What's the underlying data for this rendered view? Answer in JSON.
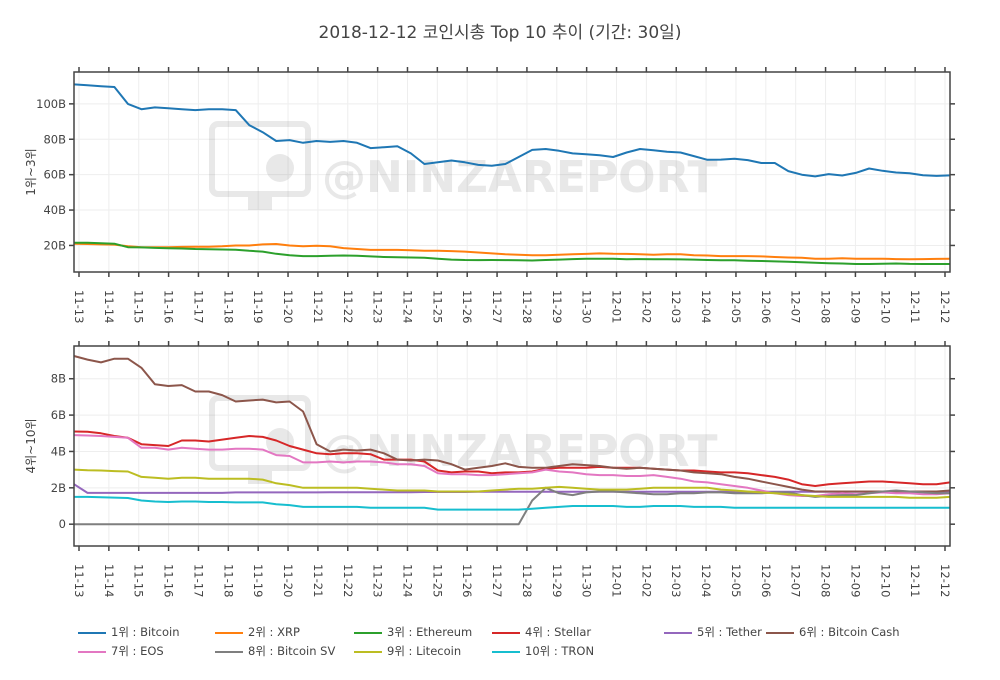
{
  "title": "2018-12-12 코인시총 Top 10 추이 (기간: 30일)",
  "watermark": "@NINZAREPORT",
  "chart_data": [
    {
      "type": "line",
      "ylabel": "1위~3위",
      "ylim": [
        5,
        118
      ],
      "yticks": [
        20,
        40,
        60,
        80,
        100
      ],
      "ytick_labels": [
        "20B",
        "40B",
        "60B",
        "80B",
        "100B"
      ],
      "x_tick_labels": [
        "11-13",
        "11-14",
        "11-15",
        "11-16",
        "11-17",
        "11-18",
        "11-19",
        "11-20",
        "11-21",
        "11-22",
        "11-23",
        "11-24",
        "11-25",
        "11-26",
        "11-27",
        "11-28",
        "11-29",
        "11-30",
        "12-01",
        "12-02",
        "12-03",
        "12-04",
        "12-05",
        "12-06",
        "12-07",
        "12-08",
        "12-09",
        "12-10",
        "12-11",
        "12-12"
      ],
      "grid": true,
      "series": [
        {
          "name": "1위 : Bitcoin",
          "color": "#1f77b4",
          "values": [
            111,
            110.5,
            110,
            109.5,
            100,
            97,
            98,
            97.5,
            97,
            96.5,
            97,
            97,
            96.5,
            88,
            84,
            79,
            79.5,
            78,
            79,
            78.5,
            79,
            78,
            75,
            75.5,
            76,
            72,
            66,
            67,
            68,
            67,
            65.5,
            65,
            66,
            70,
            74,
            74.5,
            73.5,
            72,
            71.5,
            71,
            70,
            72.5,
            74.5,
            73.8,
            72.9,
            72.5,
            70.5,
            68.4,
            68.5,
            69,
            68.2,
            66.6,
            66.6,
            62,
            60,
            59,
            60.3,
            59.5,
            61,
            63.5,
            62.2,
            61.2,
            60.8,
            59.7,
            59.3,
            59.6
          ]
        },
        {
          "name": "2위 : XRP",
          "color": "#ff7f0e",
          "values": [
            21,
            20.8,
            20.6,
            20.5,
            19.5,
            19,
            19,
            19,
            19.2,
            19.3,
            19.3,
            19.5,
            20,
            20,
            20.6,
            20.8,
            20,
            19.5,
            19.8,
            19.5,
            18.5,
            18,
            17.5,
            17.5,
            17.5,
            17.3,
            17,
            17,
            16.8,
            16.5,
            16,
            15.5,
            15,
            14.8,
            14.5,
            14.5,
            14.8,
            15,
            15.2,
            15.5,
            15.3,
            15.2,
            15,
            14.8,
            15,
            15,
            14.5,
            14.3,
            14,
            14,
            14,
            13.8,
            13.5,
            13.2,
            13,
            12.5,
            12.5,
            12.8,
            12.5,
            12.5,
            12.5,
            12.3,
            12.2,
            12.3,
            12.4,
            12.5
          ]
        },
        {
          "name": "3위 : Ethereum",
          "color": "#2ca02c",
          "values": [
            21.5,
            21.5,
            21.3,
            21,
            19,
            18.9,
            18.6,
            18.4,
            18.3,
            18,
            17.9,
            17.7,
            17.6,
            17,
            16.5,
            15.3,
            14.5,
            14,
            14,
            14.2,
            14.3,
            14.2,
            13.8,
            13.5,
            13.3,
            13.2,
            13,
            12.5,
            12,
            11.8,
            11.7,
            11.8,
            11.7,
            11.6,
            11.5,
            11.8,
            12,
            12.3,
            12.5,
            12.5,
            12.5,
            12.2,
            12.3,
            12.2,
            12.2,
            12.1,
            12,
            11.8,
            11.6,
            11.6,
            11.4,
            11.2,
            11,
            10.8,
            10.5,
            10.2,
            10,
            9.8,
            9.5,
            9.5,
            9.7,
            9.8,
            9.6,
            9.5,
            9.5,
            9.5
          ]
        }
      ]
    },
    {
      "type": "line",
      "ylabel": "4위~10위",
      "ylim": [
        -1.2,
        9.8
      ],
      "yticks": [
        0,
        2,
        4,
        6,
        8
      ],
      "ytick_labels": [
        "0",
        "2B",
        "4B",
        "6B",
        "8B"
      ],
      "x_tick_labels": [
        "11-13",
        "11-14",
        "11-15",
        "11-16",
        "11-17",
        "11-18",
        "11-19",
        "11-20",
        "11-21",
        "11-22",
        "11-23",
        "11-24",
        "11-25",
        "11-26",
        "11-27",
        "11-28",
        "11-29",
        "11-30",
        "12-01",
        "12-02",
        "12-03",
        "12-04",
        "12-05",
        "12-06",
        "12-07",
        "12-08",
        "12-09",
        "12-10",
        "12-11",
        "12-12"
      ],
      "grid": true,
      "series": [
        {
          "name": "4위 : Stellar",
          "color": "#d62728",
          "values": [
            5.1,
            5.08,
            5.0,
            4.85,
            4.75,
            4.4,
            4.35,
            4.3,
            4.6,
            4.6,
            4.55,
            4.65,
            4.75,
            4.85,
            4.8,
            4.6,
            4.3,
            4.1,
            3.9,
            3.85,
            3.9,
            3.9,
            3.85,
            3.55,
            3.55,
            3.55,
            3.45,
            2.95,
            2.85,
            2.9,
            2.9,
            2.8,
            2.85,
            2.85,
            2.9,
            3.05,
            3.1,
            3.1,
            3.1,
            3.15,
            3.1,
            3.1,
            3.1,
            3.05,
            3.0,
            2.95,
            2.95,
            2.9,
            2.85,
            2.85,
            2.8,
            2.7,
            2.6,
            2.45,
            2.2,
            2.1,
            2.2,
            2.25,
            2.3,
            2.35,
            2.35,
            2.3,
            2.25,
            2.2,
            2.2,
            2.3
          ]
        },
        {
          "name": "5위 : Tether",
          "color": "#9467bd",
          "values": [
            2.2,
            1.72,
            1.72,
            1.72,
            1.72,
            1.72,
            1.72,
            1.72,
            1.72,
            1.72,
            1.72,
            1.72,
            1.75,
            1.75,
            1.75,
            1.75,
            1.75,
            1.75,
            1.75,
            1.76,
            1.76,
            1.76,
            1.76,
            1.76,
            1.76,
            1.76,
            1.77,
            1.77,
            1.77,
            1.77,
            1.78,
            1.78,
            1.78,
            1.78,
            1.78,
            1.78,
            1.78,
            1.78,
            1.78,
            1.78,
            1.78,
            1.78,
            1.78,
            1.78,
            1.78,
            1.78,
            1.78,
            1.78,
            1.78,
            1.78,
            1.78,
            1.78,
            1.78,
            1.78,
            1.78,
            1.78,
            1.78,
            1.78,
            1.78,
            1.78,
            1.78,
            1.78,
            1.78,
            1.78,
            1.78,
            1.8
          ]
        },
        {
          "name": "6위 : Bitcoin Cash",
          "color": "#8c564b",
          "values": [
            9.25,
            9.05,
            8.9,
            9.1,
            9.1,
            8.6,
            7.7,
            7.6,
            7.65,
            7.3,
            7.3,
            7.1,
            6.75,
            6.8,
            6.85,
            6.7,
            6.75,
            6.2,
            4.4,
            4.0,
            4.1,
            4.05,
            4.1,
            3.9,
            3.55,
            3.5,
            3.55,
            3.5,
            3.3,
            3.0,
            3.1,
            3.2,
            3.35,
            3.15,
            3.1,
            3.1,
            3.2,
            3.3,
            3.25,
            3.2,
            3.1,
            3.05,
            3.1,
            3.05,
            3.0,
            2.95,
            2.85,
            2.8,
            2.75,
            2.6,
            2.5,
            2.35,
            2.2,
            2.05,
            1.9,
            1.8,
            1.8,
            1.8,
            1.8,
            1.8,
            1.8,
            1.8,
            1.8,
            1.8,
            1.8,
            1.85
          ]
        },
        {
          "name": "7위 : EOS",
          "color": "#e377c2",
          "values": [
            4.9,
            4.88,
            4.85,
            4.8,
            4.75,
            4.2,
            4.2,
            4.1,
            4.2,
            4.15,
            4.1,
            4.1,
            4.15,
            4.15,
            4.1,
            3.8,
            3.75,
            3.4,
            3.4,
            3.45,
            3.4,
            3.45,
            3.45,
            3.4,
            3.3,
            3.3,
            3.2,
            2.8,
            2.75,
            2.75,
            2.7,
            2.7,
            2.75,
            2.8,
            2.85,
            3.0,
            2.9,
            2.85,
            2.75,
            2.7,
            2.7,
            2.65,
            2.65,
            2.7,
            2.6,
            2.5,
            2.35,
            2.3,
            2.2,
            2.1,
            2.0,
            1.85,
            1.7,
            1.6,
            1.55,
            1.55,
            1.65,
            1.7,
            1.65,
            1.7,
            1.75,
            1.7,
            1.7,
            1.65,
            1.65,
            1.7
          ]
        },
        {
          "name": "8위 : Bitcoin SV",
          "color": "#7f7f7f",
          "values": [
            0,
            0,
            0,
            0,
            0,
            0,
            0,
            0,
            0,
            0,
            0,
            0,
            0,
            0,
            0,
            0,
            0,
            0,
            0,
            0,
            0,
            0,
            0,
            0,
            0,
            0,
            0,
            0,
            0,
            0,
            0,
            0,
            0,
            0,
            1.3,
            2.0,
            1.7,
            1.6,
            1.75,
            1.8,
            1.8,
            1.75,
            1.7,
            1.65,
            1.65,
            1.7,
            1.7,
            1.75,
            1.75,
            1.7,
            1.7,
            1.7,
            1.75,
            1.75,
            1.6,
            1.5,
            1.55,
            1.6,
            1.6,
            1.7,
            1.8,
            1.85,
            1.8,
            1.75,
            1.7,
            1.7
          ]
        },
        {
          "name": "9위 : Litecoin",
          "color": "#bcbd22",
          "values": [
            3.0,
            2.97,
            2.95,
            2.92,
            2.9,
            2.6,
            2.55,
            2.5,
            2.55,
            2.55,
            2.5,
            2.5,
            2.5,
            2.5,
            2.45,
            2.25,
            2.15,
            2.0,
            2.0,
            2.0,
            2.0,
            2.0,
            1.95,
            1.9,
            1.85,
            1.85,
            1.85,
            1.8,
            1.8,
            1.8,
            1.8,
            1.85,
            1.9,
            1.95,
            1.95,
            2.0,
            2.05,
            2.0,
            1.95,
            1.9,
            1.9,
            1.9,
            1.95,
            2.0,
            2.0,
            2.0,
            2.0,
            2.0,
            1.9,
            1.85,
            1.8,
            1.75,
            1.7,
            1.65,
            1.6,
            1.55,
            1.5,
            1.5,
            1.5,
            1.5,
            1.5,
            1.5,
            1.45,
            1.45,
            1.45,
            1.5
          ]
        },
        {
          "name": "10위 : TRON",
          "color": "#17becf",
          "values": [
            1.5,
            1.5,
            1.48,
            1.46,
            1.44,
            1.3,
            1.25,
            1.22,
            1.25,
            1.25,
            1.22,
            1.22,
            1.2,
            1.2,
            1.2,
            1.1,
            1.05,
            0.95,
            0.95,
            0.95,
            0.95,
            0.95,
            0.9,
            0.9,
            0.9,
            0.9,
            0.9,
            0.8,
            0.8,
            0.8,
            0.8,
            0.8,
            0.8,
            0.8,
            0.85,
            0.9,
            0.95,
            1.0,
            1.0,
            1.0,
            1.0,
            0.95,
            0.95,
            1.0,
            1.0,
            1.0,
            0.95,
            0.95,
            0.95,
            0.9,
            0.9,
            0.9,
            0.9,
            0.9,
            0.9,
            0.9,
            0.9,
            0.9,
            0.9,
            0.9,
            0.9,
            0.9,
            0.9,
            0.9,
            0.9,
            0.9
          ]
        }
      ]
    }
  ],
  "legend": [
    {
      "label": "1위 : Bitcoin",
      "color": "#1f77b4"
    },
    {
      "label": "2위 : XRP",
      "color": "#ff7f0e"
    },
    {
      "label": "3위 : Ethereum",
      "color": "#2ca02c"
    },
    {
      "label": "4위 : Stellar",
      "color": "#d62728"
    },
    {
      "label": "5위 : Tether",
      "color": "#9467bd"
    },
    {
      "label": "6위 : Bitcoin Cash",
      "color": "#8c564b"
    },
    {
      "label": "7위 : EOS",
      "color": "#e377c2"
    },
    {
      "label": "8위 : Bitcoin SV",
      "color": "#7f7f7f"
    },
    {
      "label": "9위 : Litecoin",
      "color": "#bcbd22"
    },
    {
      "label": "10위 : TRON",
      "color": "#17becf"
    }
  ]
}
